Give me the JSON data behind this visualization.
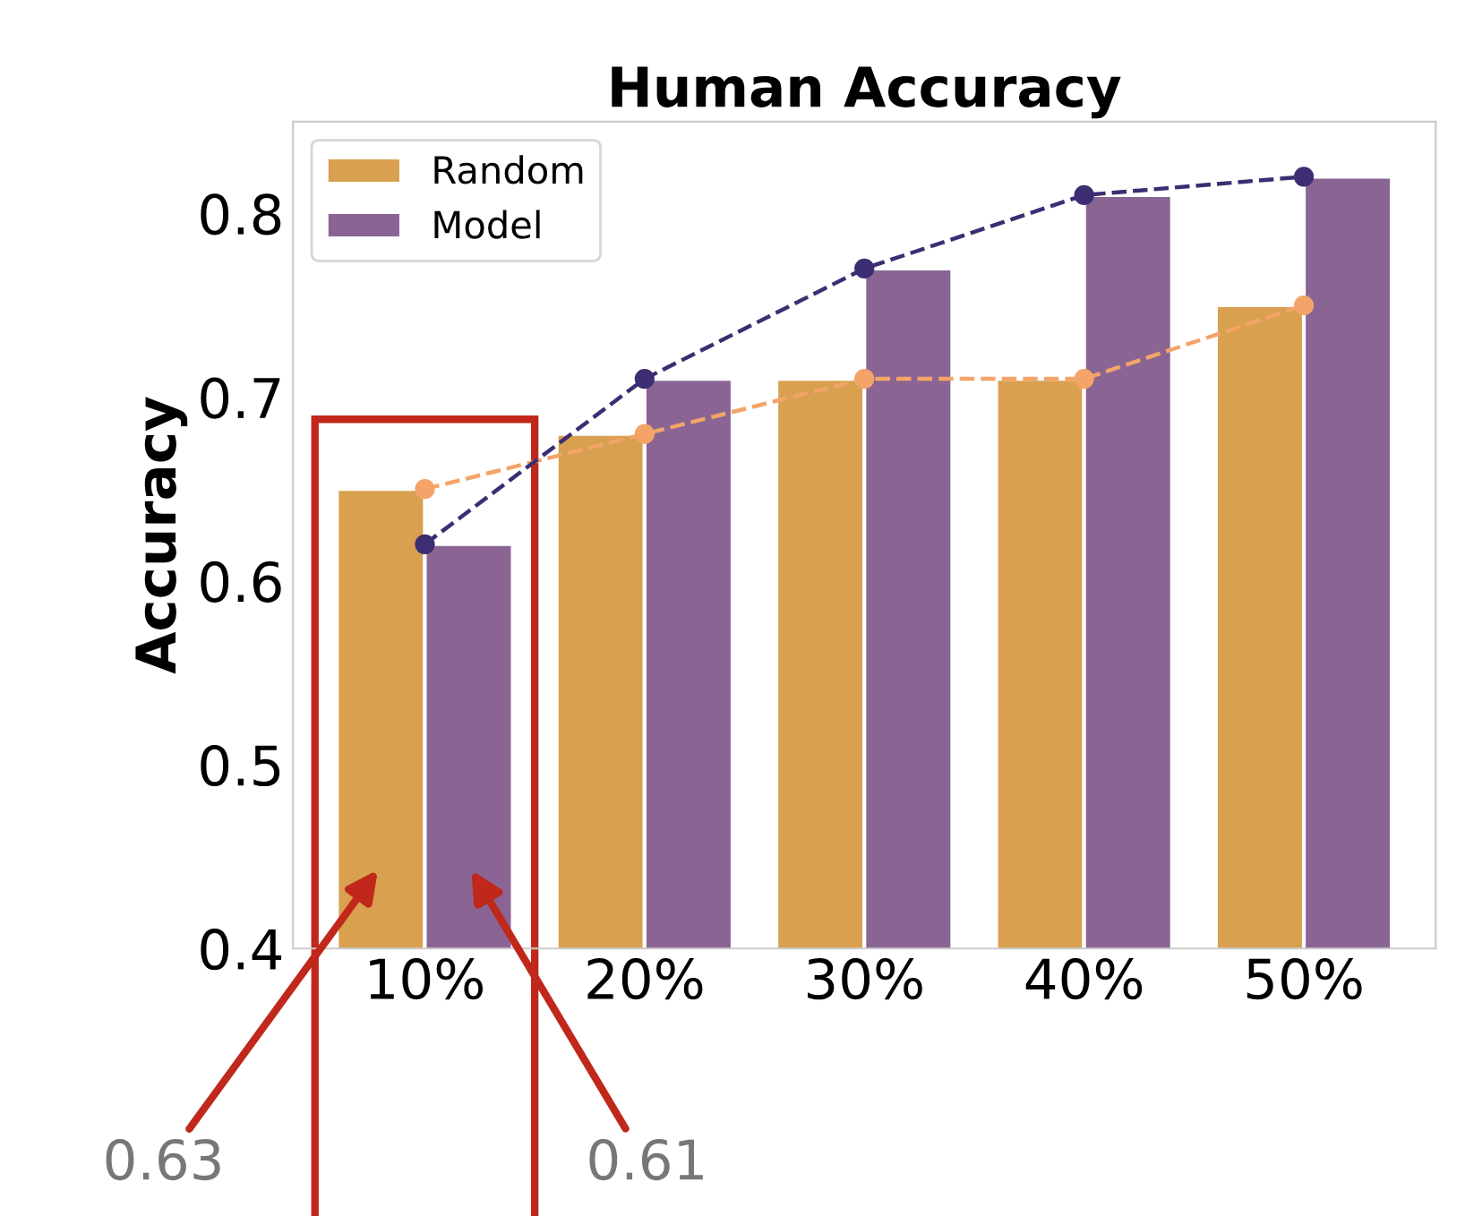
{
  "chart_data": {
    "type": "bar",
    "title": "Human Accuracy",
    "ylabel": "Accuracy",
    "categories": [
      "10%",
      "20%",
      "30%",
      "40%",
      "50%"
    ],
    "series": [
      {
        "name": "Random",
        "color": "#d9a04f",
        "values": [
          0.65,
          0.68,
          0.71,
          0.71,
          0.75
        ]
      },
      {
        "name": "Model",
        "color": "#8a6593",
        "values": [
          0.62,
          0.71,
          0.77,
          0.81,
          0.82
        ]
      },
      {
        "type": "line",
        "color": "#f4a468",
        "values": [
          0.65,
          0.68,
          0.71,
          0.71,
          0.75
        ]
      },
      {
        "type": "line",
        "color": "#3d2d72",
        "values": [
          0.62,
          0.71,
          0.77,
          0.81,
          0.82
        ]
      }
    ],
    "ylim": [
      0.4,
      0.85
    ],
    "yticks": [
      0.4,
      0.5,
      0.6,
      0.7,
      0.8
    ],
    "grid": false,
    "legend": "top left",
    "marker": "circle",
    "line_style": "dashed",
    "annotations": [
      "0.63",
      "0.61"
    ]
  }
}
